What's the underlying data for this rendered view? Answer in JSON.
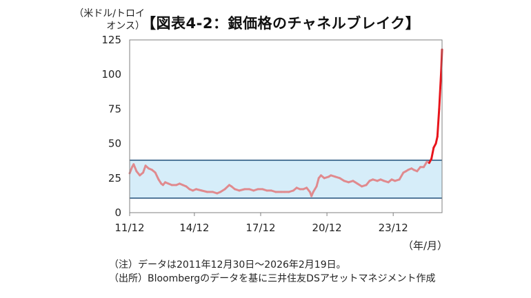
{
  "unit_label": "（米ドル/トロイオンス）",
  "title": "【図表4-2：銀価格のチャネルブレイク】",
  "x_unit": "（年/月）",
  "notes": [
    "（注）データは2011年12月30日～2026年2月19日。",
    "（出所）Bloombergのデータを基に三井住友DSアセットマネジメント作成"
  ],
  "colors": {
    "line_in_channel": "#e08a8e",
    "line_breakout": "#e8141b",
    "channel_fill": "#d6edf9",
    "channel_border": "#1f4e79",
    "axis": "#7f7f7f"
  },
  "chart_data": {
    "type": "line",
    "title": "【図表4-2：銀価格のチャネルブレイク】",
    "ylabel": "（米ドル/トロイオンス）",
    "xlabel": "（年/月）",
    "ylim": [
      0,
      125
    ],
    "yticks": [
      0,
      25,
      50,
      75,
      100,
      125
    ],
    "xlim": [
      2011.99,
      2026.13
    ],
    "xticks": [
      {
        "value": 2011.99,
        "label": "11/12"
      },
      {
        "value": 2014.92,
        "label": "14/12"
      },
      {
        "value": 2017.92,
        "label": "17/12"
      },
      {
        "value": 2020.92,
        "label": "20/12"
      },
      {
        "value": 2023.92,
        "label": "23/12"
      }
    ],
    "grid": false,
    "channel": {
      "lower": 10.5,
      "upper": 38
    },
    "series": [
      {
        "x": [
          2011.99,
          2012.1,
          2012.17,
          2012.3,
          2012.45,
          2012.6,
          2012.71,
          2012.85,
          2013.0,
          2013.15,
          2013.3,
          2013.42,
          2013.5,
          2013.6,
          2013.75,
          2013.9,
          2014.1,
          2014.25,
          2014.4,
          2014.55,
          2014.7,
          2014.85,
          2015.0,
          2015.25,
          2015.5,
          2015.75,
          2015.95,
          2016.1,
          2016.3,
          2016.5,
          2016.6,
          2016.75,
          2016.95,
          2017.2,
          2017.4,
          2017.6,
          2017.8,
          2018.0,
          2018.2,
          2018.4,
          2018.6,
          2018.85,
          2019.0,
          2019.2,
          2019.4,
          2019.55,
          2019.7,
          2019.85,
          2020.0,
          2020.15,
          2020.22,
          2020.3,
          2020.45,
          2020.55,
          2020.65,
          2020.8,
          2021.0,
          2021.1,
          2021.3,
          2021.5,
          2021.7,
          2021.9,
          2022.1,
          2022.3,
          2022.5,
          2022.7,
          2022.85,
          2023.0,
          2023.2,
          2023.35,
          2023.5,
          2023.7,
          2023.85,
          2024.0,
          2024.2,
          2024.38,
          2024.5,
          2024.6,
          2024.75,
          2024.85,
          2025.0,
          2025.15,
          2025.3,
          2025.45,
          2025.55,
          2025.65,
          2025.75,
          2025.85,
          2025.92,
          2026.0,
          2026.05,
          2026.1,
          2026.13
        ],
        "y": [
          28.5,
          33,
          35,
          30,
          27,
          29,
          34,
          32,
          31,
          29,
          24,
          21,
          20,
          22,
          21,
          20,
          20,
          21,
          20,
          19,
          17,
          16,
          17,
          16,
          15,
          15,
          14,
          15,
          17,
          20,
          19,
          17,
          16,
          17,
          17,
          16,
          17,
          17,
          16,
          16,
          15,
          15,
          15,
          15,
          16,
          18,
          17,
          17,
          18,
          15,
          12,
          15,
          19,
          25,
          27,
          25,
          26,
          27,
          26,
          25,
          23,
          22,
          23,
          21,
          19,
          20,
          23,
          24,
          23,
          24,
          23,
          22,
          24,
          23,
          24,
          29,
          30,
          31,
          32,
          31,
          30,
          33,
          33,
          37,
          36,
          39,
          47,
          50,
          55,
          75,
          90,
          105,
          118
        ]
      }
    ]
  }
}
